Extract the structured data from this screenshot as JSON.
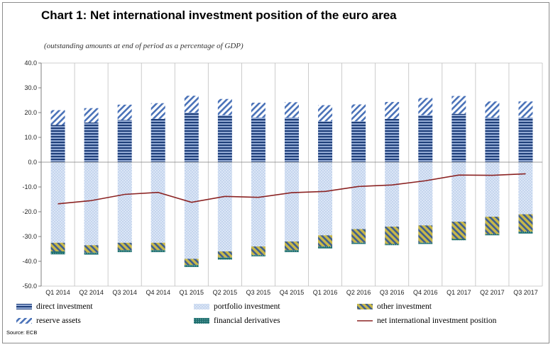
{
  "title": "Chart 1: Net international investment position of the euro area",
  "subtitle": "(outstanding amounts at end of period as a percentage of GDP)",
  "source": "Source: ECB",
  "chart_data": {
    "type": "bar",
    "stacked": true,
    "ylim": [
      -50,
      40
    ],
    "yticks": [
      40,
      30,
      20,
      10,
      0,
      -10,
      -20,
      -30,
      -40,
      -50
    ],
    "ytick_labels": [
      "40.0",
      "30.0",
      "20.0",
      "10.0",
      "0.0",
      "-10.0",
      "-20.0",
      "-30.0",
      "-40.0",
      "-50.0"
    ],
    "categories": [
      "Q1 2014",
      "Q2 2014",
      "Q3 2014",
      "Q4 2014",
      "Q1 2015",
      "Q2 2015",
      "Q3 2015",
      "Q4 2015",
      "Q1 2016",
      "Q2 2016",
      "Q3 2016",
      "Q4 2016",
      "Q1 2017",
      "Q2 2017",
      "Q3 2017"
    ],
    "series": [
      {
        "name": "direct investment",
        "key": "direct",
        "values": [
          15.0,
          16.0,
          17.0,
          17.5,
          20.0,
          19.0,
          18.0,
          18.0,
          16.5,
          16.5,
          17.5,
          19.0,
          19.5,
          18.0,
          18.0
        ]
      },
      {
        "name": "reserve assets",
        "key": "reserve",
        "values": [
          6.0,
          5.8,
          6.2,
          6.3,
          6.8,
          6.5,
          6.0,
          6.2,
          6.5,
          6.8,
          6.8,
          6.9,
          7.2,
          6.5,
          6.5
        ]
      },
      {
        "name": "portfolio investment",
        "key": "portfolio",
        "values": [
          -32.5,
          -33.5,
          -32.5,
          -32.5,
          -39.0,
          -36.0,
          -34.0,
          -32.0,
          -29.5,
          -27.0,
          -26.0,
          -25.5,
          -24.0,
          -22.0,
          -21.0
        ]
      },
      {
        "name": "other investment",
        "key": "other",
        "values": [
          -3.5,
          -3.0,
          -3.0,
          -3.0,
          -2.5,
          -2.5,
          -3.5,
          -3.5,
          -4.5,
          -5.5,
          -7.0,
          -7.0,
          -7.0,
          -7.0,
          -7.0
        ]
      },
      {
        "name": "financial derivatives",
        "key": "derivatives",
        "values": [
          -1.2,
          -0.8,
          -0.8,
          -0.8,
          -0.8,
          -0.8,
          -0.5,
          -0.8,
          -0.8,
          -0.5,
          -0.5,
          -0.5,
          -0.5,
          -0.5,
          -0.8
        ]
      },
      {
        "name": "net international investment position",
        "key": "net",
        "type": "line",
        "color": "#8b2323",
        "values": [
          -16.8,
          -15.5,
          -13.0,
          -12.2,
          -16.2,
          -13.8,
          -14.2,
          -12.3,
          -11.8,
          -9.8,
          -9.2,
          -7.5,
          -5.2,
          -5.3,
          -4.7
        ]
      }
    ],
    "legend": [
      {
        "label": "direct investment",
        "key": "direct"
      },
      {
        "label": "portfolio investment",
        "key": "portfolio"
      },
      {
        "label": "other investment",
        "key": "other"
      },
      {
        "label": "reserve assets",
        "key": "reserve"
      },
      {
        "label": "financial derivatives",
        "key": "derivatives"
      },
      {
        "label": "net international investment position",
        "key": "net"
      }
    ],
    "legend_position": "bottom",
    "grid": "vertical",
    "colors": {
      "direct_dark": "#1f3f7a",
      "direct_light": "#9fb6df",
      "reserve_dark": "#4a72b8",
      "portfolio_bg": "#dbe6f6",
      "portfolio_dot": "#6a90cc",
      "other_dark": "#3f5f8f",
      "other_light": "#c8b84a",
      "derivatives": "#1f6f6f",
      "line": "#8b2323",
      "grid": "#bfbfbf",
      "axis": "#7f7f7f"
    }
  }
}
